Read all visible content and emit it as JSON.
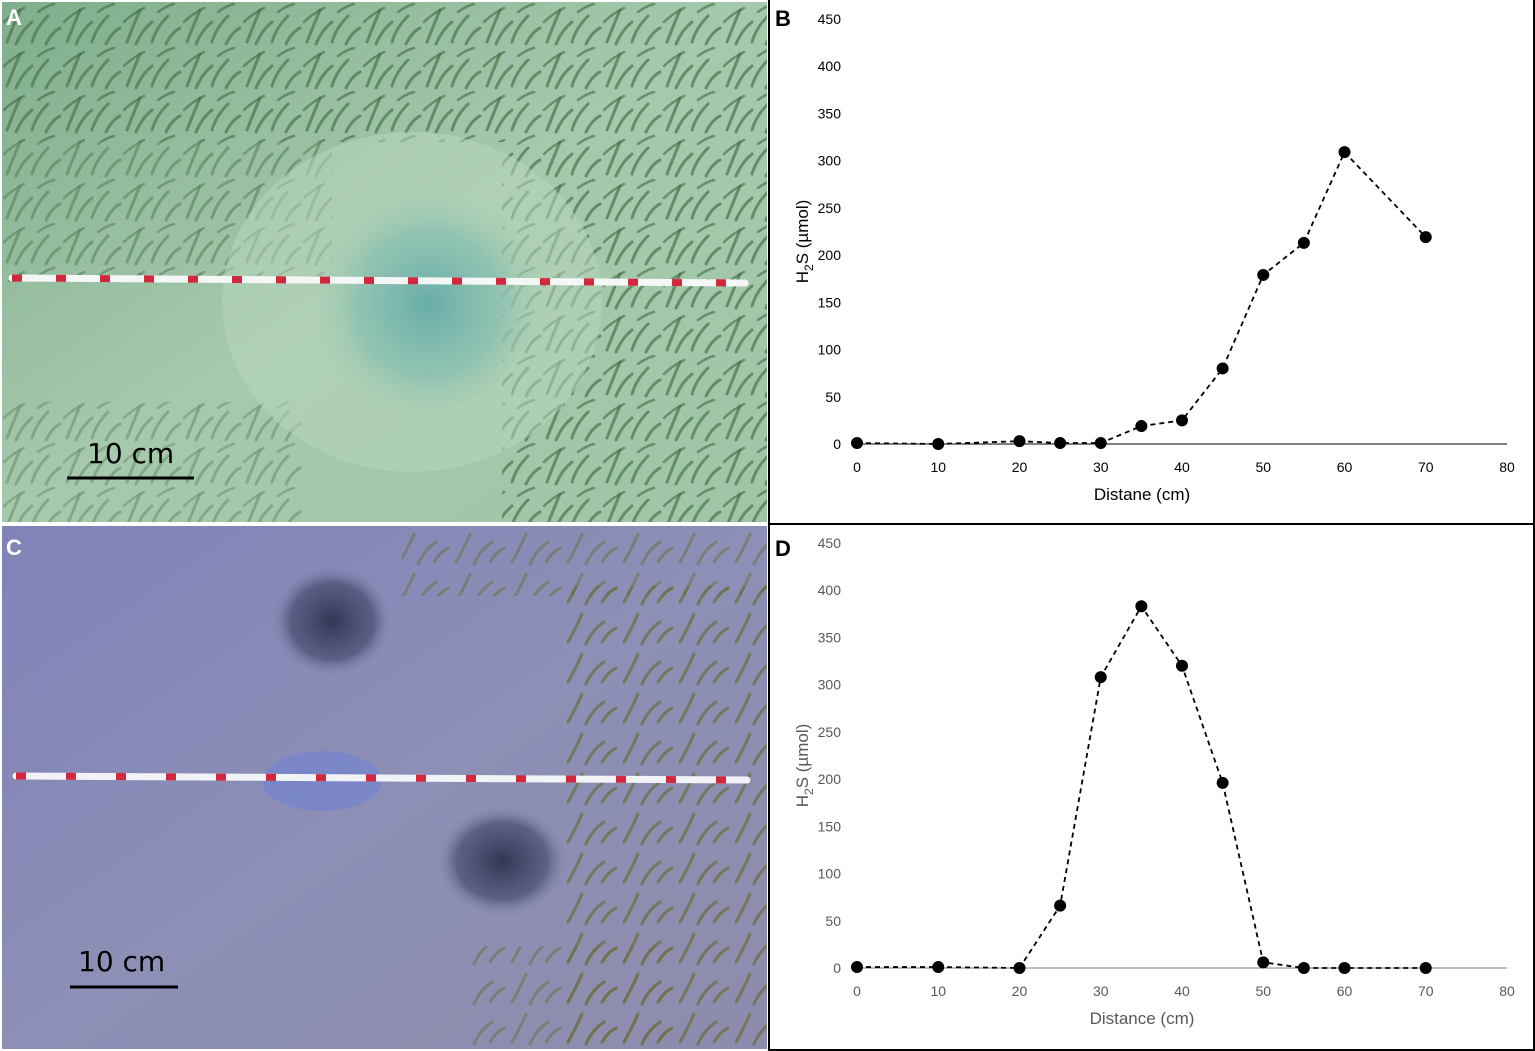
{
  "panels": {
    "a": {
      "letter": "A",
      "scale_label": "10 cm"
    },
    "b": {
      "letter": "B"
    },
    "c": {
      "letter": "C",
      "scale_label": "10 cm"
    },
    "d": {
      "letter": "D"
    }
  },
  "colors": {
    "marker": "#000000",
    "axis_b": "#000000",
    "axis_d": "#595959"
  },
  "chart_data": [
    {
      "type": "line",
      "panel": "B",
      "x": [
        0,
        10,
        20,
        25,
        30,
        35,
        40,
        45,
        50,
        55,
        60,
        70
      ],
      "y": [
        1,
        0,
        3,
        1,
        1,
        19,
        25,
        80,
        179,
        213,
        309,
        219
      ],
      "xlim": [
        0,
        80
      ],
      "ylim": [
        0,
        450
      ],
      "xticks": [
        0,
        10,
        20,
        30,
        40,
        50,
        60,
        70,
        80
      ],
      "yticks": [
        0,
        50,
        100,
        150,
        200,
        250,
        300,
        350,
        400,
        450
      ],
      "xlabel": "Distane (cm)",
      "ylabel_main": "H",
      "ylabel_sub": "2",
      "ylabel_rest": "S (µmol)",
      "line_style": "dashed",
      "marker": "circle",
      "grid": false
    },
    {
      "type": "line",
      "panel": "D",
      "x": [
        0,
        10,
        20,
        25,
        30,
        35,
        40,
        45,
        50,
        55,
        60,
        70
      ],
      "y": [
        1,
        1,
        0,
        66,
        308,
        383,
        320,
        196,
        6,
        0,
        0,
        0
      ],
      "xlim": [
        0,
        80
      ],
      "ylim": [
        0,
        450
      ],
      "xticks": [
        0,
        10,
        20,
        30,
        40,
        50,
        60,
        70,
        80
      ],
      "yticks": [
        0,
        50,
        100,
        150,
        200,
        250,
        300,
        350,
        400,
        450
      ],
      "xlabel": "Distance (cm)",
      "ylabel_main": "H",
      "ylabel_sub": "2",
      "ylabel_rest": "S (µmol)",
      "line_style": "dashed",
      "marker": "circle",
      "grid": false
    }
  ]
}
